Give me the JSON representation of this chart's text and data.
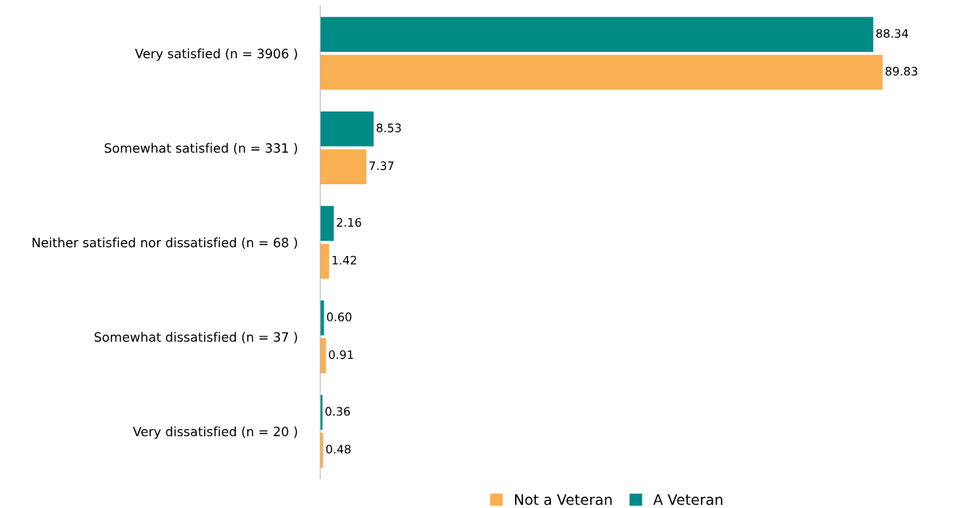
{
  "chart_data": {
    "type": "bar",
    "orientation": "horizontal",
    "categories": [
      "Very satisfied (n = 3906 )",
      "Somewhat satisfied (n = 331 )",
      "Neither satisfied nor dissatisfied (n = 68 )",
      "Somewhat dissatisfied (n = 37 )",
      "Very dissatisfied (n = 20 )"
    ],
    "series": [
      {
        "name": "A Veteran",
        "color": "#008b87",
        "values": [
          88.34,
          8.53,
          2.16,
          0.6,
          0.36
        ],
        "value_labels": [
          "88.34",
          "8.53",
          "2.16",
          "0.60",
          "0.36"
        ]
      },
      {
        "name": "Not a Veteran",
        "color": "#f9b052",
        "values": [
          89.83,
          7.37,
          1.42,
          0.91,
          0.48
        ],
        "value_labels": [
          "89.83",
          "7.37",
          "1.42",
          "0.91",
          "0.48"
        ]
      }
    ],
    "tick_labels": "y",
    "grid": false,
    "legend": "bottom"
  }
}
